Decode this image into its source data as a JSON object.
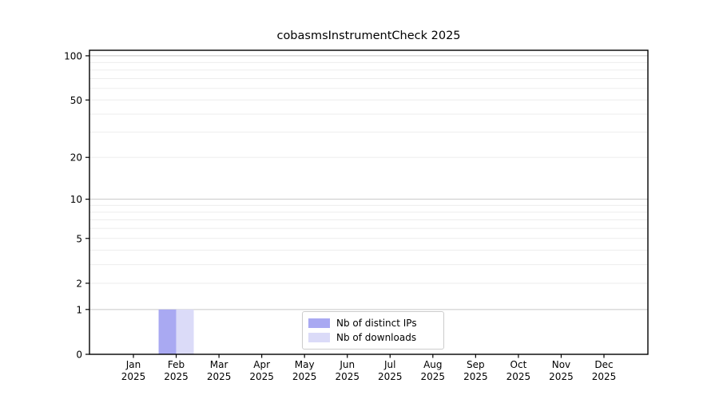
{
  "chart_data": {
    "type": "bar",
    "title": "cobasmsInstrumentCheck 2025",
    "categories": [
      "Jan 2025",
      "Feb 2025",
      "Mar 2025",
      "Apr 2025",
      "May 2025",
      "Jun 2025",
      "Jul 2025",
      "Aug 2025",
      "Sep 2025",
      "Oct 2025",
      "Nov 2025",
      "Dec 2025"
    ],
    "series": [
      {
        "name": "Nb of distinct IPs",
        "color": "#a9a9f2",
        "values": [
          0,
          1,
          0,
          0,
          0,
          0,
          0,
          0,
          0,
          0,
          0,
          0
        ]
      },
      {
        "name": "Nb of downloads",
        "color": "#dbdbf8",
        "values": [
          0,
          1,
          0,
          0,
          0,
          0,
          0,
          0,
          0,
          0,
          0,
          0
        ]
      }
    ],
    "xlabel": "",
    "ylabel": "",
    "y_axis": {
      "scale": "log1p",
      "ticks": [
        0,
        1,
        2,
        5,
        10,
        20,
        50,
        100
      ],
      "max": 109
    },
    "grid": {
      "major_values": [
        1,
        10,
        100
      ],
      "minor_values": [
        2,
        3,
        4,
        5,
        6,
        7,
        8,
        9,
        20,
        30,
        40,
        50,
        60,
        70,
        80,
        90
      ],
      "major_color": "#c6c6c6",
      "minor_color": "#ededed"
    },
    "legend": {
      "position": "lower center"
    },
    "colors": {
      "spine": "#000000",
      "text": "#000000",
      "background": "#ffffff"
    }
  }
}
